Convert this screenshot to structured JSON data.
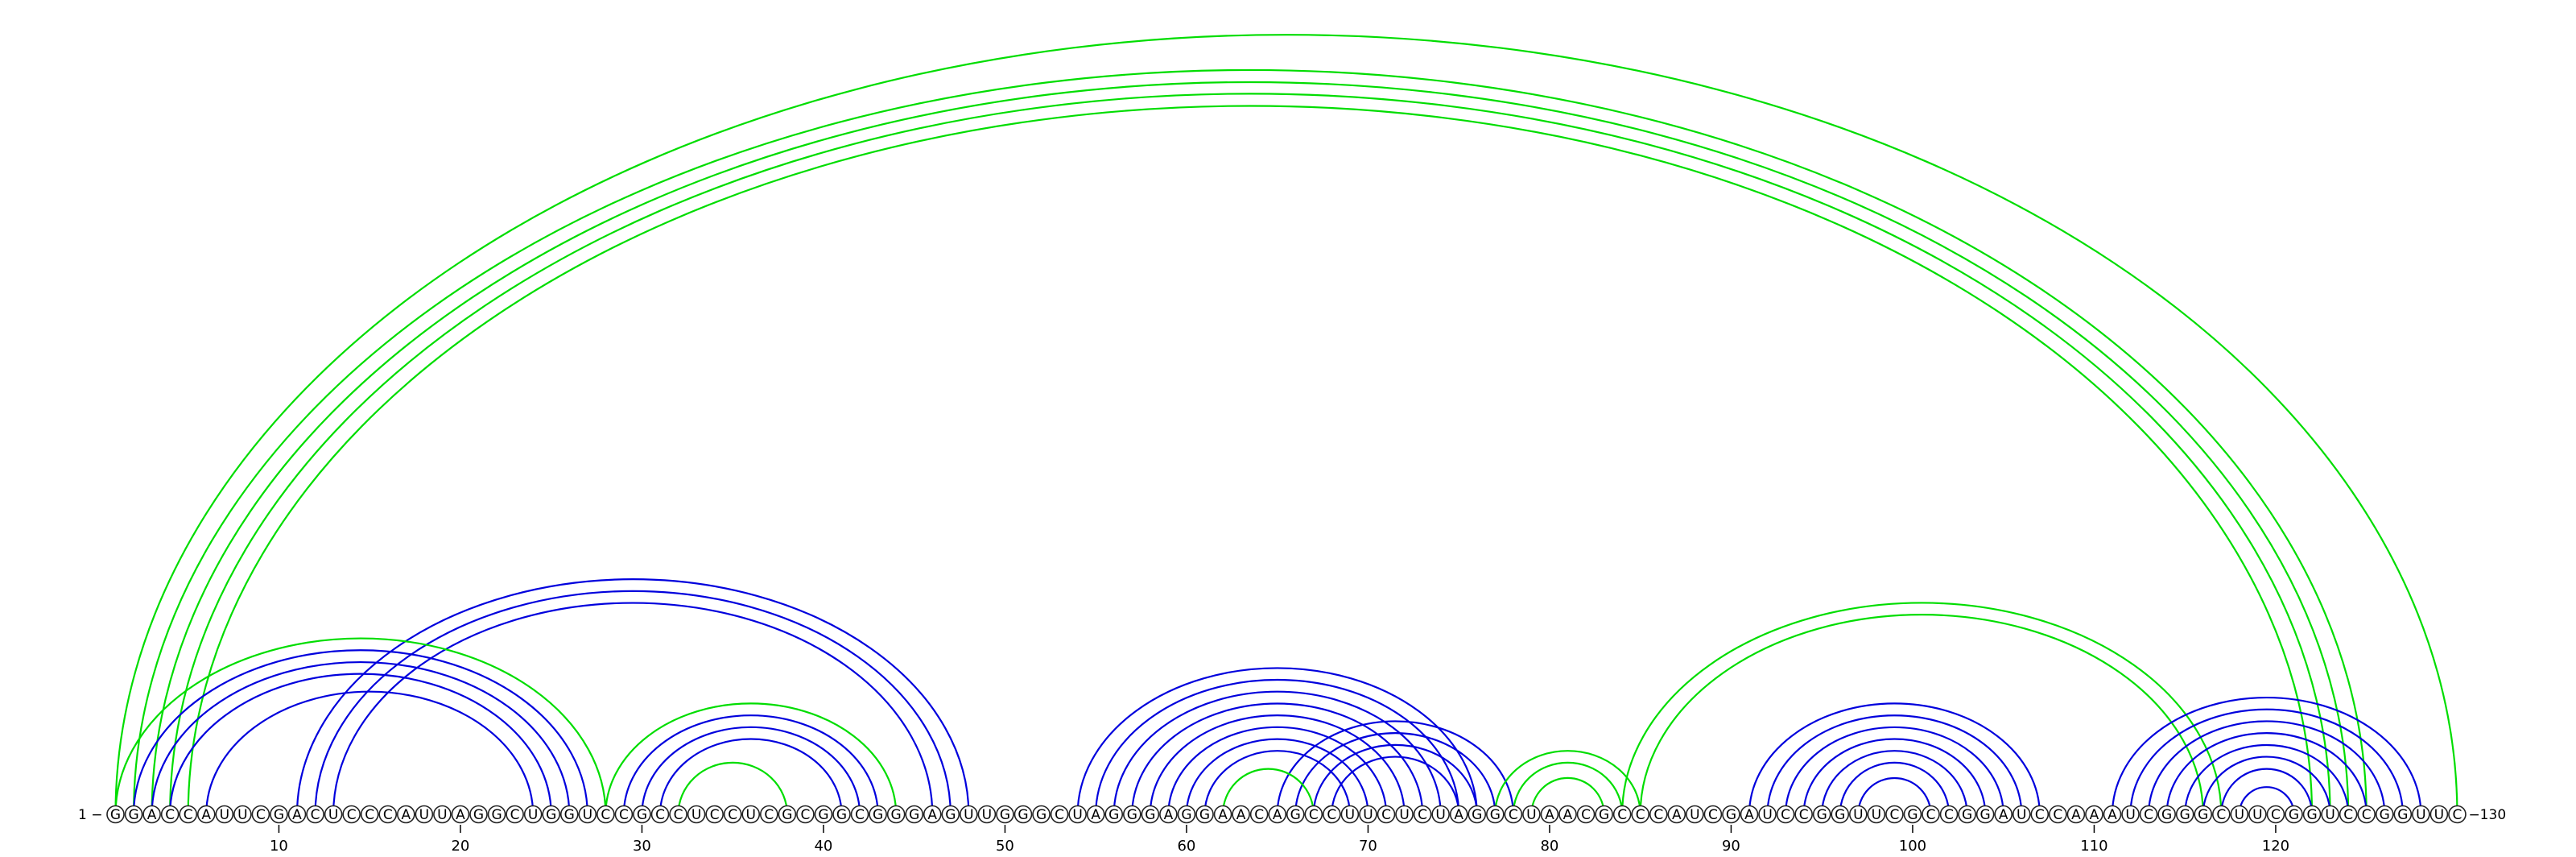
{
  "diagram": {
    "sequence": "GGACCAUUCGACUCCCAUUAGGCUGGUCCGCCUCCUCGCGGCGGGAGUUGGGCUAGGGAGGAACAGCCUUCUCUAGGCUAACGCCCAUCGAUCCGGUUCGCCGGAUCCAAAUCGGGCUUCGGUCCGGUUC",
    "start_label": "1 −",
    "end_label": "−130",
    "tick_positions": [
      10,
      20,
      30,
      40,
      50,
      60,
      70,
      80,
      90,
      100,
      110,
      120
    ],
    "colors": {
      "green": "#00dd00",
      "blue": "#0000dd"
    },
    "arcs": [
      {
        "i": 1,
        "j": 130,
        "color": "green"
      },
      {
        "i": 2,
        "j": 125,
        "color": "green"
      },
      {
        "i": 3,
        "j": 124,
        "color": "green"
      },
      {
        "i": 4,
        "j": 123,
        "color": "green"
      },
      {
        "i": 5,
        "j": 122,
        "color": "green"
      },
      {
        "i": 1,
        "j": 28,
        "color": "green"
      },
      {
        "i": 2,
        "j": 27,
        "color": "blue"
      },
      {
        "i": 3,
        "j": 26,
        "color": "blue"
      },
      {
        "i": 4,
        "j": 25,
        "color": "blue"
      },
      {
        "i": 6,
        "j": 24,
        "color": "blue"
      },
      {
        "i": 11,
        "j": 48,
        "color": "blue"
      },
      {
        "i": 12,
        "j": 47,
        "color": "blue"
      },
      {
        "i": 13,
        "j": 46,
        "color": "blue"
      },
      {
        "i": 28,
        "j": 44,
        "color": "green"
      },
      {
        "i": 29,
        "j": 43,
        "color": "blue"
      },
      {
        "i": 30,
        "j": 42,
        "color": "blue"
      },
      {
        "i": 31,
        "j": 41,
        "color": "blue"
      },
      {
        "i": 32,
        "j": 38,
        "color": "green"
      },
      {
        "i": 54,
        "j": 76,
        "color": "blue"
      },
      {
        "i": 55,
        "j": 75,
        "color": "blue"
      },
      {
        "i": 56,
        "j": 74,
        "color": "blue"
      },
      {
        "i": 57,
        "j": 73,
        "color": "blue"
      },
      {
        "i": 58,
        "j": 72,
        "color": "blue"
      },
      {
        "i": 59,
        "j": 71,
        "color": "blue"
      },
      {
        "i": 60,
        "j": 70,
        "color": "blue"
      },
      {
        "i": 61,
        "j": 69,
        "color": "blue"
      },
      {
        "i": 62,
        "j": 67,
        "color": "green"
      },
      {
        "i": 65,
        "j": 78,
        "color": "blue"
      },
      {
        "i": 66,
        "j": 77,
        "color": "blue"
      },
      {
        "i": 67,
        "j": 76,
        "color": "blue"
      },
      {
        "i": 68,
        "j": 75,
        "color": "blue"
      },
      {
        "i": 77,
        "j": 85,
        "color": "green"
      },
      {
        "i": 78,
        "j": 84,
        "color": "green"
      },
      {
        "i": 79,
        "j": 83,
        "color": "green"
      },
      {
        "i": 84,
        "j": 117,
        "color": "green"
      },
      {
        "i": 85,
        "j": 116,
        "color": "green"
      },
      {
        "i": 91,
        "j": 107,
        "color": "blue"
      },
      {
        "i": 92,
        "j": 106,
        "color": "blue"
      },
      {
        "i": 93,
        "j": 105,
        "color": "blue"
      },
      {
        "i": 94,
        "j": 104,
        "color": "blue"
      },
      {
        "i": 95,
        "j": 103,
        "color": "blue"
      },
      {
        "i": 96,
        "j": 102,
        "color": "blue"
      },
      {
        "i": 97,
        "j": 101,
        "color": "blue"
      },
      {
        "i": 111,
        "j": 128,
        "color": "blue"
      },
      {
        "i": 112,
        "j": 127,
        "color": "blue"
      },
      {
        "i": 113,
        "j": 126,
        "color": "blue"
      },
      {
        "i": 114,
        "j": 125,
        "color": "blue"
      },
      {
        "i": 115,
        "j": 124,
        "color": "blue"
      },
      {
        "i": 116,
        "j": 123,
        "color": "blue"
      },
      {
        "i": 117,
        "j": 122,
        "color": "blue"
      },
      {
        "i": 118,
        "j": 121,
        "color": "blue"
      }
    ]
  }
}
